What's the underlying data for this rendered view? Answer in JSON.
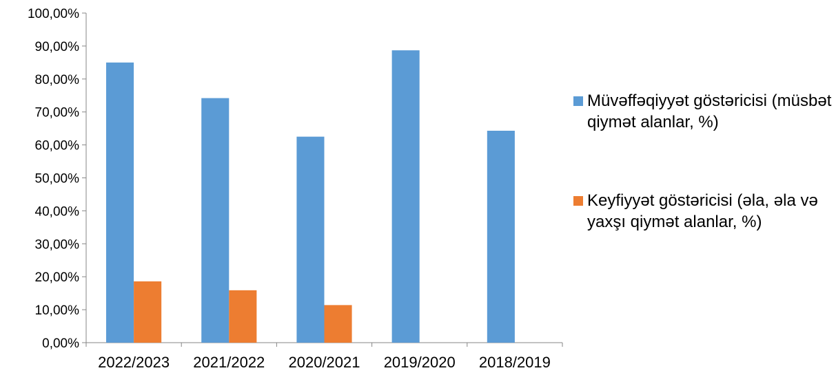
{
  "chart_data": {
    "type": "bar",
    "categories": [
      "2022/2023",
      "2021/2022",
      "2020/2021",
      "2019/2020",
      "2018/2019"
    ],
    "series": [
      {
        "name": "Müvəffəqiyyət göstəricisi (müsbət qiymət alanlar, %)",
        "color": "#5B9BD5",
        "values": [
          85.0,
          74.2,
          62.5,
          88.7,
          64.3
        ]
      },
      {
        "name": "Keyfiyyət göstəricisi (əla, əla və yaxşı qiymət alanlar, %)",
        "color": "#ED7D31",
        "values": [
          18.6,
          15.9,
          11.4,
          null,
          null
        ]
      }
    ],
    "yticks": [
      "0,00%",
      "10,00%",
      "20,00%",
      "30,00%",
      "40,00%",
      "50,00%",
      "60,00%",
      "70,00%",
      "80,00%",
      "90,00%",
      "100,00%"
    ],
    "ylim": [
      0,
      100
    ],
    "grid": false,
    "legend_position": "right"
  }
}
